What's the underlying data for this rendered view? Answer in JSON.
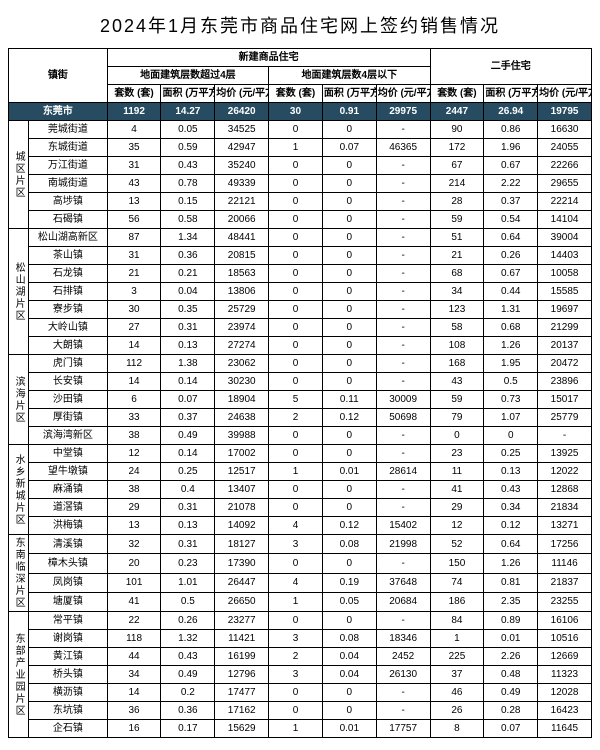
{
  "title": "2024年1月东莞市商品住宅网上签约销售情况",
  "headers": {
    "town": "镇街",
    "newBuild": "新建商品住宅",
    "over4": "地面建筑层数超过4层",
    "under4": "地面建筑层数4层以下",
    "second": "二手住宅",
    "sets": "套数 (套)",
    "area": "面积 (万平方米)",
    "price": "均价 (元/平方米)"
  },
  "total": {
    "town": "东莞市",
    "a": "1192",
    "b": "14.27",
    "c": "26420",
    "d": "30",
    "e": "0.91",
    "f": "29975",
    "g": "2447",
    "h": "26.94",
    "i": "19795"
  },
  "regions": [
    {
      "name": "城区片区",
      "rows": [
        {
          "town": "莞城街道",
          "a": "4",
          "b": "0.05",
          "c": "34525",
          "d": "0",
          "e": "0",
          "f": "-",
          "g": "90",
          "h": "0.86",
          "i": "16630"
        },
        {
          "town": "东城街道",
          "a": "35",
          "b": "0.59",
          "c": "42947",
          "d": "1",
          "e": "0.07",
          "f": "46365",
          "g": "172",
          "h": "1.96",
          "i": "24055"
        },
        {
          "town": "万江街道",
          "a": "31",
          "b": "0.43",
          "c": "35240",
          "d": "0",
          "e": "0",
          "f": "-",
          "g": "67",
          "h": "0.67",
          "i": "22266"
        },
        {
          "town": "南城街道",
          "a": "43",
          "b": "0.78",
          "c": "49339",
          "d": "0",
          "e": "0",
          "f": "-",
          "g": "214",
          "h": "2.22",
          "i": "29655"
        },
        {
          "town": "高埗镇",
          "a": "13",
          "b": "0.15",
          "c": "22121",
          "d": "0",
          "e": "0",
          "f": "-",
          "g": "28",
          "h": "0.37",
          "i": "22214"
        },
        {
          "town": "石碣镇",
          "a": "56",
          "b": "0.58",
          "c": "20066",
          "d": "0",
          "e": "0",
          "f": "-",
          "g": "59",
          "h": "0.54",
          "i": "14104"
        }
      ]
    },
    {
      "name": "松山湖片区",
      "rows": [
        {
          "town": "松山湖高新区",
          "a": "87",
          "b": "1.34",
          "c": "48441",
          "d": "0",
          "e": "0",
          "f": "-",
          "g": "51",
          "h": "0.64",
          "i": "39004"
        },
        {
          "town": "茶山镇",
          "a": "31",
          "b": "0.36",
          "c": "20815",
          "d": "0",
          "e": "0",
          "f": "-",
          "g": "21",
          "h": "0.26",
          "i": "14403"
        },
        {
          "town": "石龙镇",
          "a": "21",
          "b": "0.21",
          "c": "18563",
          "d": "0",
          "e": "0",
          "f": "-",
          "g": "68",
          "h": "0.67",
          "i": "10058"
        },
        {
          "town": "石排镇",
          "a": "3",
          "b": "0.04",
          "c": "13806",
          "d": "0",
          "e": "0",
          "f": "-",
          "g": "34",
          "h": "0.44",
          "i": "15585"
        },
        {
          "town": "寮步镇",
          "a": "30",
          "b": "0.35",
          "c": "25729",
          "d": "0",
          "e": "0",
          "f": "-",
          "g": "123",
          "h": "1.31",
          "i": "19697"
        },
        {
          "town": "大岭山镇",
          "a": "27",
          "b": "0.31",
          "c": "23974",
          "d": "0",
          "e": "0",
          "f": "-",
          "g": "58",
          "h": "0.68",
          "i": "21299"
        },
        {
          "town": "大朗镇",
          "a": "14",
          "b": "0.13",
          "c": "27274",
          "d": "0",
          "e": "0",
          "f": "-",
          "g": "108",
          "h": "1.26",
          "i": "20137"
        }
      ]
    },
    {
      "name": "滨海片区",
      "rows": [
        {
          "town": "虎门镇",
          "a": "112",
          "b": "1.38",
          "c": "23062",
          "d": "0",
          "e": "0",
          "f": "-",
          "g": "168",
          "h": "1.95",
          "i": "20472"
        },
        {
          "town": "长安镇",
          "a": "14",
          "b": "0.14",
          "c": "30230",
          "d": "0",
          "e": "0",
          "f": "-",
          "g": "43",
          "h": "0.5",
          "i": "23896"
        },
        {
          "town": "沙田镇",
          "a": "6",
          "b": "0.07",
          "c": "18904",
          "d": "5",
          "e": "0.11",
          "f": "30009",
          "g": "59",
          "h": "0.73",
          "i": "15017"
        },
        {
          "town": "厚街镇",
          "a": "33",
          "b": "0.37",
          "c": "24638",
          "d": "2",
          "e": "0.12",
          "f": "50698",
          "g": "79",
          "h": "1.07",
          "i": "25779"
        },
        {
          "town": "滨海湾新区",
          "a": "38",
          "b": "0.49",
          "c": "39988",
          "d": "0",
          "e": "0",
          "f": "-",
          "g": "0",
          "h": "0",
          "i": "-"
        }
      ]
    },
    {
      "name": "水乡新城片区",
      "rows": [
        {
          "town": "中堂镇",
          "a": "12",
          "b": "0.14",
          "c": "17002",
          "d": "0",
          "e": "0",
          "f": "-",
          "g": "23",
          "h": "0.25",
          "i": "13925"
        },
        {
          "town": "望牛墩镇",
          "a": "24",
          "b": "0.25",
          "c": "12517",
          "d": "1",
          "e": "0.01",
          "f": "28614",
          "g": "11",
          "h": "0.13",
          "i": "12022"
        },
        {
          "town": "麻涌镇",
          "a": "38",
          "b": "0.4",
          "c": "13407",
          "d": "0",
          "e": "0",
          "f": "-",
          "g": "41",
          "h": "0.43",
          "i": "12868"
        },
        {
          "town": "道滘镇",
          "a": "29",
          "b": "0.31",
          "c": "21078",
          "d": "0",
          "e": "0",
          "f": "-",
          "g": "29",
          "h": "0.34",
          "i": "21834"
        },
        {
          "town": "洪梅镇",
          "a": "13",
          "b": "0.13",
          "c": "14092",
          "d": "4",
          "e": "0.12",
          "f": "15402",
          "g": "12",
          "h": "0.12",
          "i": "13271"
        }
      ]
    },
    {
      "name": "东南临深片区",
      "rows": [
        {
          "town": "清溪镇",
          "a": "32",
          "b": "0.31",
          "c": "18127",
          "d": "3",
          "e": "0.08",
          "f": "21998",
          "g": "52",
          "h": "0.64",
          "i": "17256"
        },
        {
          "town": "樟木头镇",
          "a": "20",
          "b": "0.23",
          "c": "17390",
          "d": "0",
          "e": "0",
          "f": "-",
          "g": "150",
          "h": "1.26",
          "i": "11146"
        },
        {
          "town": "凤岗镇",
          "a": "101",
          "b": "1.01",
          "c": "26447",
          "d": "4",
          "e": "0.19",
          "f": "37648",
          "g": "74",
          "h": "0.81",
          "i": "21837"
        },
        {
          "town": "塘厦镇",
          "a": "41",
          "b": "0.5",
          "c": "26650",
          "d": "1",
          "e": "0.05",
          "f": "20684",
          "g": "186",
          "h": "2.35",
          "i": "23255"
        }
      ]
    },
    {
      "name": "东部产业园片区",
      "rows": [
        {
          "town": "常平镇",
          "a": "22",
          "b": "0.26",
          "c": "23277",
          "d": "0",
          "e": "0",
          "f": "-",
          "g": "84",
          "h": "0.89",
          "i": "16106"
        },
        {
          "town": "谢岗镇",
          "a": "118",
          "b": "1.32",
          "c": "11421",
          "d": "3",
          "e": "0.08",
          "f": "18346",
          "g": "1",
          "h": "0.01",
          "i": "10516"
        },
        {
          "town": "黄江镇",
          "a": "44",
          "b": "0.43",
          "c": "16199",
          "d": "2",
          "e": "0.04",
          "f": "2452",
          "g": "225",
          "h": "2.26",
          "i": "12669"
        },
        {
          "town": "桥头镇",
          "a": "34",
          "b": "0.49",
          "c": "12796",
          "d": "3",
          "e": "0.04",
          "f": "26130",
          "g": "37",
          "h": "0.48",
          "i": "11323"
        },
        {
          "town": "横沥镇",
          "a": "14",
          "b": "0.2",
          "c": "17477",
          "d": "0",
          "e": "0",
          "f": "-",
          "g": "46",
          "h": "0.49",
          "i": "12028"
        },
        {
          "town": "东坑镇",
          "a": "36",
          "b": "0.36",
          "c": "17162",
          "d": "0",
          "e": "0",
          "f": "-",
          "g": "26",
          "h": "0.28",
          "i": "16423"
        },
        {
          "town": "企石镇",
          "a": "16",
          "b": "0.17",
          "c": "15629",
          "d": "1",
          "e": "0.01",
          "f": "17757",
          "g": "8",
          "h": "0.07",
          "i": "11645"
        }
      ]
    }
  ]
}
